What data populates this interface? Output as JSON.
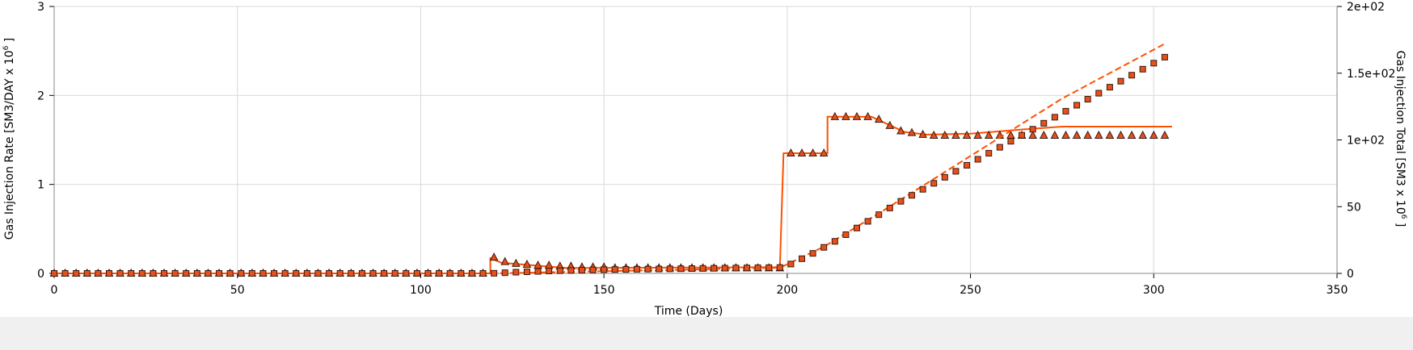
{
  "chart_data": {
    "type": "line",
    "xlabel": "Time (Days)",
    "ylabel_left": {
      "main": "Gas Injection Rate [SM3/DAY x 10",
      "sup": "6",
      "tail": " ]"
    },
    "ylabel_right": {
      "main": "Gas Injection Total [SM3 x 10",
      "sup": "6",
      "tail": " ]"
    },
    "xlim": [
      0,
      350
    ],
    "ylim_left": [
      0,
      3
    ],
    "ylim_right": [
      0,
      200
    ],
    "x_ticks": [
      "0",
      "50",
      "100",
      "150",
      "200",
      "250",
      "300",
      "350"
    ],
    "y_left_ticks": [
      "0",
      "1",
      "2",
      "3"
    ],
    "y_right_ticks": [
      "0",
      "50",
      "1e+02",
      "1.5e+02",
      "2e+02"
    ],
    "grid": true,
    "colors": {
      "line": "#ff5000",
      "marker_fill": "#e8501a",
      "marker_stroke": "#3a1a10",
      "grid": "#d9d9d9",
      "axis": "#888888"
    },
    "series": [
      {
        "axis": "left",
        "style": "solid-line",
        "points": [
          [
            0,
            0
          ],
          [
            119,
            0
          ],
          [
            119,
            0.17
          ],
          [
            122,
            0.12
          ],
          [
            140,
            0.06
          ],
          [
            198,
            0.07
          ],
          [
            199,
            1.35
          ],
          [
            211,
            1.35
          ],
          [
            211,
            1.76
          ],
          [
            223,
            1.76
          ],
          [
            232,
            1.59
          ],
          [
            238,
            1.56
          ],
          [
            250,
            1.57
          ],
          [
            265,
            1.62
          ],
          [
            275,
            1.65
          ],
          [
            305,
            1.65
          ]
        ]
      },
      {
        "axis": "left",
        "style": "triangle-markers",
        "points": [
          [
            0,
            0
          ],
          [
            3,
            0
          ],
          [
            6,
            0
          ],
          [
            9,
            0
          ],
          [
            12,
            0
          ],
          [
            15,
            0
          ],
          [
            18,
            0
          ],
          [
            21,
            0
          ],
          [
            24,
            0
          ],
          [
            27,
            0
          ],
          [
            30,
            0
          ],
          [
            33,
            0
          ],
          [
            36,
            0
          ],
          [
            39,
            0
          ],
          [
            42,
            0
          ],
          [
            45,
            0
          ],
          [
            48,
            0
          ],
          [
            51,
            0
          ],
          [
            54,
            0
          ],
          [
            57,
            0
          ],
          [
            60,
            0
          ],
          [
            63,
            0
          ],
          [
            66,
            0
          ],
          [
            69,
            0
          ],
          [
            72,
            0
          ],
          [
            75,
            0
          ],
          [
            78,
            0
          ],
          [
            81,
            0
          ],
          [
            84,
            0
          ],
          [
            87,
            0
          ],
          [
            90,
            0
          ],
          [
            93,
            0
          ],
          [
            96,
            0
          ],
          [
            99,
            0
          ],
          [
            102,
            0
          ],
          [
            105,
            0
          ],
          [
            108,
            0
          ],
          [
            111,
            0
          ],
          [
            114,
            0
          ],
          [
            117,
            0
          ],
          [
            120,
            0.18
          ],
          [
            123,
            0.13
          ],
          [
            126,
            0.11
          ],
          [
            129,
            0.1
          ],
          [
            132,
            0.09
          ],
          [
            135,
            0.09
          ],
          [
            138,
            0.08
          ],
          [
            141,
            0.08
          ],
          [
            144,
            0.07
          ],
          [
            147,
            0.07
          ],
          [
            150,
            0.07
          ],
          [
            153,
            0.06
          ],
          [
            156,
            0.06
          ],
          [
            159,
            0.06
          ],
          [
            162,
            0.06
          ],
          [
            165,
            0.06
          ],
          [
            168,
            0.06
          ],
          [
            171,
            0.06
          ],
          [
            174,
            0.06
          ],
          [
            177,
            0.06
          ],
          [
            180,
            0.06
          ],
          [
            183,
            0.06
          ],
          [
            186,
            0.06
          ],
          [
            189,
            0.06
          ],
          [
            192,
            0.06
          ],
          [
            195,
            0.06
          ],
          [
            198,
            0.06
          ],
          [
            201,
            1.35
          ],
          [
            204,
            1.35
          ],
          [
            207,
            1.35
          ],
          [
            210,
            1.35
          ],
          [
            213,
            1.76
          ],
          [
            216,
            1.76
          ],
          [
            219,
            1.76
          ],
          [
            222,
            1.76
          ],
          [
            225,
            1.73
          ],
          [
            228,
            1.66
          ],
          [
            231,
            1.6
          ],
          [
            234,
            1.58
          ],
          [
            237,
            1.56
          ],
          [
            240,
            1.55
          ],
          [
            243,
            1.55
          ],
          [
            246,
            1.55
          ],
          [
            249,
            1.55
          ],
          [
            252,
            1.55
          ],
          [
            255,
            1.55
          ],
          [
            258,
            1.55
          ],
          [
            261,
            1.55
          ],
          [
            264,
            1.55
          ],
          [
            267,
            1.55
          ],
          [
            270,
            1.55
          ],
          [
            273,
            1.55
          ],
          [
            276,
            1.55
          ],
          [
            279,
            1.55
          ],
          [
            282,
            1.55
          ],
          [
            285,
            1.55
          ],
          [
            288,
            1.55
          ],
          [
            291,
            1.55
          ],
          [
            294,
            1.55
          ],
          [
            297,
            1.55
          ],
          [
            300,
            1.55
          ],
          [
            303,
            1.55
          ]
        ]
      },
      {
        "axis": "right",
        "style": "dashed-line",
        "points": [
          [
            0,
            0
          ],
          [
            120,
            0
          ],
          [
            198,
            4.2
          ],
          [
            210,
            20
          ],
          [
            225,
            45
          ],
          [
            250,
            88
          ],
          [
            275,
            131
          ],
          [
            303,
            172
          ]
        ]
      },
      {
        "axis": "right",
        "style": "square-markers",
        "points": [
          [
            0,
            0
          ],
          [
            3,
            0
          ],
          [
            6,
            0
          ],
          [
            9,
            0
          ],
          [
            12,
            0
          ],
          [
            15,
            0
          ],
          [
            18,
            0
          ],
          [
            21,
            0
          ],
          [
            24,
            0
          ],
          [
            27,
            0
          ],
          [
            30,
            0
          ],
          [
            33,
            0
          ],
          [
            36,
            0
          ],
          [
            39,
            0
          ],
          [
            42,
            0
          ],
          [
            45,
            0
          ],
          [
            48,
            0
          ],
          [
            51,
            0
          ],
          [
            54,
            0
          ],
          [
            57,
            0
          ],
          [
            60,
            0
          ],
          [
            63,
            0
          ],
          [
            66,
            0
          ],
          [
            69,
            0
          ],
          [
            72,
            0
          ],
          [
            75,
            0
          ],
          [
            78,
            0
          ],
          [
            81,
            0
          ],
          [
            84,
            0
          ],
          [
            87,
            0
          ],
          [
            90,
            0
          ],
          [
            93,
            0
          ],
          [
            96,
            0
          ],
          [
            99,
            0
          ],
          [
            102,
            0
          ],
          [
            105,
            0
          ],
          [
            108,
            0
          ],
          [
            111,
            0
          ],
          [
            114,
            0
          ],
          [
            117,
            0
          ],
          [
            120,
            0.1
          ],
          [
            123,
            0.5
          ],
          [
            126,
            0.9
          ],
          [
            129,
            1.2
          ],
          [
            132,
            1.5
          ],
          [
            135,
            1.8
          ],
          [
            138,
            2.0
          ],
          [
            141,
            2.2
          ],
          [
            144,
            2.4
          ],
          [
            147,
            2.6
          ],
          [
            150,
            2.8
          ],
          [
            153,
            2.9
          ],
          [
            156,
            3.0
          ],
          [
            159,
            3.1
          ],
          [
            162,
            3.2
          ],
          [
            165,
            3.3
          ],
          [
            168,
            3.4
          ],
          [
            171,
            3.5
          ],
          [
            174,
            3.6
          ],
          [
            177,
            3.7
          ],
          [
            180,
            3.8
          ],
          [
            183,
            3.9
          ],
          [
            186,
            4.0
          ],
          [
            189,
            4.1
          ],
          [
            192,
            4.2
          ],
          [
            195,
            4.3
          ],
          [
            198,
            4.4
          ],
          [
            201,
            7
          ],
          [
            204,
            11
          ],
          [
            207,
            15
          ],
          [
            210,
            19.5
          ],
          [
            213,
            24
          ],
          [
            216,
            29
          ],
          [
            219,
            34
          ],
          [
            222,
            39
          ],
          [
            225,
            44
          ],
          [
            228,
            49
          ],
          [
            231,
            54
          ],
          [
            234,
            58.5
          ],
          [
            237,
            63
          ],
          [
            240,
            67.5
          ],
          [
            243,
            72
          ],
          [
            246,
            76.5
          ],
          [
            249,
            81
          ],
          [
            252,
            85.5
          ],
          [
            255,
            90
          ],
          [
            258,
            94.5
          ],
          [
            261,
            99
          ],
          [
            264,
            103.5
          ],
          [
            267,
            108
          ],
          [
            270,
            112.5
          ],
          [
            273,
            117
          ],
          [
            276,
            121.5
          ],
          [
            279,
            126
          ],
          [
            282,
            130.5
          ],
          [
            285,
            135
          ],
          [
            288,
            139.5
          ],
          [
            291,
            144
          ],
          [
            294,
            148.5
          ],
          [
            297,
            153
          ],
          [
            300,
            157.5
          ],
          [
            303,
            162
          ]
        ]
      }
    ]
  }
}
